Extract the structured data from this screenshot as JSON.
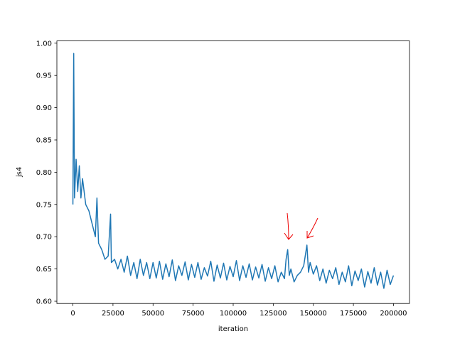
{
  "chart_data": {
    "type": "line",
    "x_label": "iteration",
    "y_label": "js4",
    "x": [
      0,
      500,
      1000,
      2000,
      3000,
      4000,
      5000,
      6000,
      8000,
      10000,
      12000,
      14000,
      15000,
      16000,
      18000,
      20000,
      22000,
      23500,
      24000,
      26000,
      28000,
      30000,
      32000,
      34000,
      36000,
      38000,
      40000,
      42000,
      44000,
      46000,
      48000,
      50000,
      52000,
      54000,
      56000,
      58000,
      60000,
      62000,
      64000,
      66000,
      68000,
      70000,
      72000,
      74000,
      76000,
      78000,
      80000,
      82000,
      84000,
      86000,
      88000,
      90000,
      92000,
      94000,
      96000,
      98000,
      100000,
      102000,
      104000,
      106000,
      108000,
      110000,
      112000,
      114000,
      116000,
      118000,
      120000,
      122000,
      124000,
      126000,
      128000,
      130000,
      132000,
      133000,
      134000,
      135000,
      136000,
      138000,
      140000,
      142000,
      144000,
      146000,
      147000,
      148000,
      150000,
      152000,
      154000,
      156000,
      158000,
      160000,
      162000,
      164000,
      166000,
      168000,
      170000,
      172000,
      174000,
      176000,
      178000,
      180000,
      182000,
      184000,
      186000,
      188000,
      190000,
      192000,
      194000,
      196000,
      198000,
      200000
    ],
    "series": [
      {
        "name": "js4",
        "color": "#1f77b4",
        "values": [
          0.75,
          0.984,
          0.76,
          0.82,
          0.77,
          0.81,
          0.76,
          0.79,
          0.75,
          0.74,
          0.72,
          0.7,
          0.76,
          0.69,
          0.68,
          0.665,
          0.67,
          0.735,
          0.66,
          0.665,
          0.65,
          0.665,
          0.645,
          0.67,
          0.64,
          0.66,
          0.635,
          0.665,
          0.64,
          0.66,
          0.635,
          0.66,
          0.636,
          0.662,
          0.634,
          0.658,
          0.638,
          0.664,
          0.632,
          0.655,
          0.64,
          0.661,
          0.633,
          0.657,
          0.637,
          0.66,
          0.634,
          0.652,
          0.639,
          0.662,
          0.631,
          0.656,
          0.636,
          0.659,
          0.633,
          0.654,
          0.638,
          0.663,
          0.632,
          0.655,
          0.637,
          0.658,
          0.633,
          0.653,
          0.636,
          0.657,
          0.631,
          0.652,
          0.635,
          0.655,
          0.63,
          0.645,
          0.635,
          0.665,
          0.68,
          0.64,
          0.65,
          0.63,
          0.64,
          0.645,
          0.655,
          0.687,
          0.645,
          0.66,
          0.642,
          0.655,
          0.632,
          0.65,
          0.628,
          0.648,
          0.635,
          0.652,
          0.626,
          0.645,
          0.63,
          0.655,
          0.624,
          0.647,
          0.632,
          0.65,
          0.622,
          0.646,
          0.628,
          0.652,
          0.625,
          0.645,
          0.62,
          0.648,
          0.626,
          0.64
        ]
      }
    ],
    "xlim": [
      -10000,
      210000
    ],
    "xticks": [
      0,
      25000,
      50000,
      75000,
      100000,
      125000,
      150000,
      175000,
      200000
    ],
    "ylim": [
      0.5965,
      1.0035
    ],
    "yticks": [
      {
        "value": 0.6,
        "label": "0.60"
      },
      0.65,
      {
        "value": 0.7,
        "label": "0.70"
      },
      0.75,
      {
        "value": 0.8,
        "label": "0.80"
      },
      0.85,
      {
        "value": 0.9,
        "label": "0.90"
      },
      0.95,
      {
        "value": 1.0,
        "label": "1.00"
      }
    ],
    "grid": false
  }
}
